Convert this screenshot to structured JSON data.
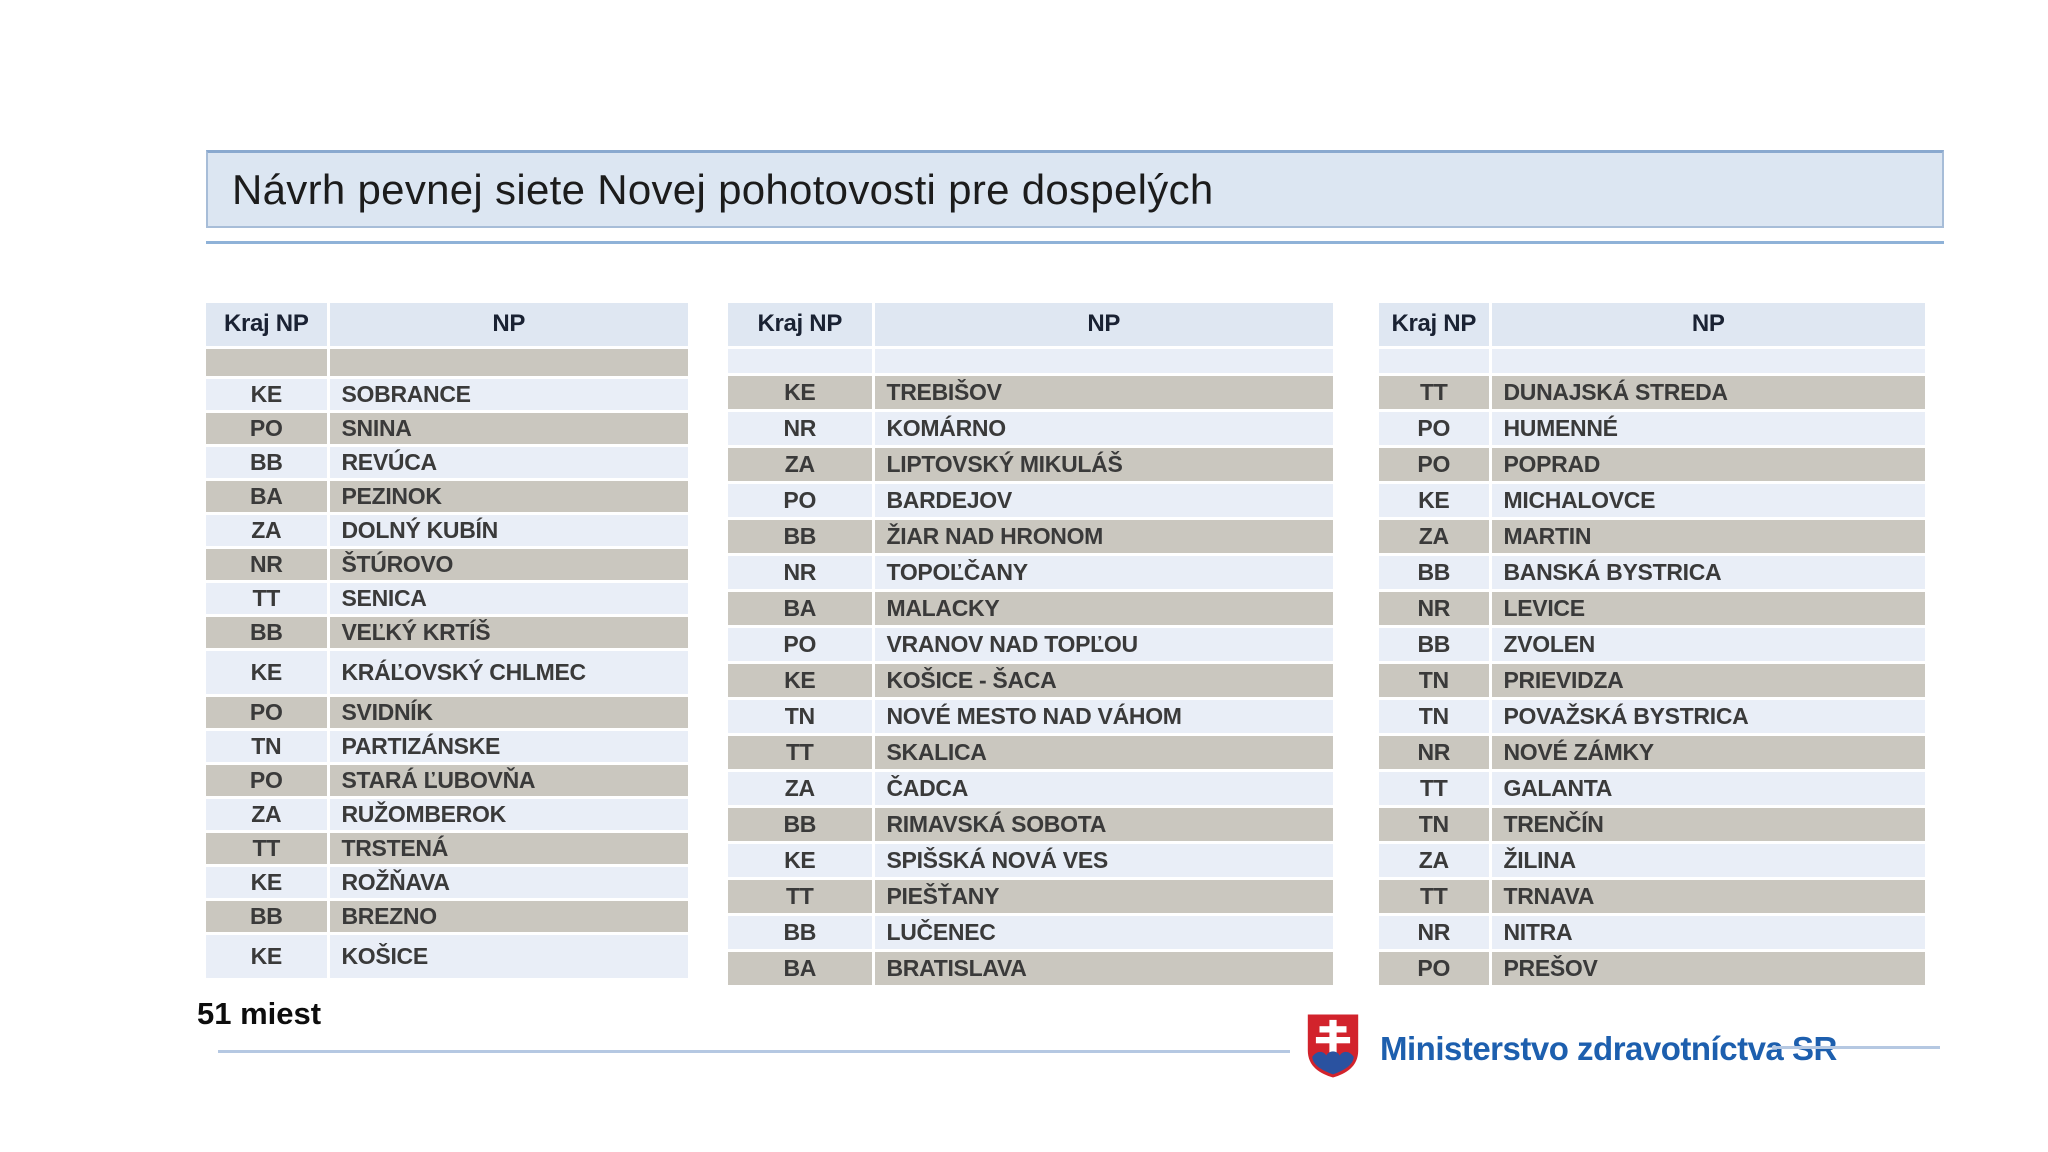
{
  "slide": {
    "title": "Návrh pevnej siete Novej pohotovosti pre dospelých",
    "count_label": "51 miest",
    "ministry_label": "Ministerstvo zdravotníctva SR"
  },
  "table_headers": {
    "kraj": "Kraj NP",
    "np": "NP"
  },
  "colors": {
    "title_bg": "#dce6f2",
    "title_border": "#a7bdd8",
    "accent_line": "#8fb2d8",
    "row_light": "#e9eef7",
    "row_gray": "#cac7bf",
    "header_bg": "#dfe7f2",
    "ministry_blue": "#1d5fae",
    "shield_red": "#d2232c",
    "shield_blue": "#2a52a0"
  },
  "tables": [
    {
      "position": "left",
      "empty_row_shade": "gray",
      "first_row_shade": "light",
      "rows": [
        {
          "kraj": "KE",
          "np": "SOBRANCE"
        },
        {
          "kraj": "PO",
          "np": "SNINA"
        },
        {
          "kraj": "BB",
          "np": "REVÚCA"
        },
        {
          "kraj": "BA",
          "np": "PEZINOK"
        },
        {
          "kraj": "ZA",
          "np": "DOLNÝ KUBÍN"
        },
        {
          "kraj": "NR",
          "np": "ŠTÚROVO"
        },
        {
          "kraj": "TT",
          "np": "SENICA"
        },
        {
          "kraj": "BB",
          "np": "VEĽKÝ KRTÍŠ"
        },
        {
          "kraj": "KE",
          "np": "KRÁĽOVSKÝ CHLMEC",
          "tall": true
        },
        {
          "kraj": "PO",
          "np": "SVIDNÍK"
        },
        {
          "kraj": "TN",
          "np": "PARTIZÁNSKE"
        },
        {
          "kraj": "PO",
          "np": "STARÁ ĽUBOVŇA"
        },
        {
          "kraj": "ZA",
          "np": "RUŽOMBEROK"
        },
        {
          "kraj": "TT",
          "np": "TRSTENÁ"
        },
        {
          "kraj": "KE",
          "np": "ROŽŇAVA"
        },
        {
          "kraj": "BB",
          "np": "BREZNO"
        },
        {
          "kraj": "KE",
          "np": "KOŠICE",
          "tall": true
        }
      ]
    },
    {
      "position": "center",
      "empty_row_shade": "light",
      "first_row_shade": "gray",
      "rows": [
        {
          "kraj": "KE",
          "np": "TREBIŠOV"
        },
        {
          "kraj": "NR",
          "np": "KOMÁRNO"
        },
        {
          "kraj": "ZA",
          "np": "LIPTOVSKÝ MIKULÁŠ"
        },
        {
          "kraj": "PO",
          "np": "BARDEJOV"
        },
        {
          "kraj": "BB",
          "np": "ŽIAR NAD HRONOM"
        },
        {
          "kraj": "NR",
          "np": "TOPOĽČANY"
        },
        {
          "kraj": "BA",
          "np": "MALACKY"
        },
        {
          "kraj": "PO",
          "np": "VRANOV NAD TOPĽOU"
        },
        {
          "kraj": "KE",
          "np": "KOŠICE - ŠACA"
        },
        {
          "kraj": "TN",
          "np": "NOVÉ MESTO NAD VÁHOM"
        },
        {
          "kraj": "TT",
          "np": "SKALICA"
        },
        {
          "kraj": "ZA",
          "np": "ČADCA"
        },
        {
          "kraj": "BB",
          "np": "RIMAVSKÁ SOBOTA"
        },
        {
          "kraj": "KE",
          "np": "SPIŠSKÁ NOVÁ VES"
        },
        {
          "kraj": "TT",
          "np": "PIEŠŤANY"
        },
        {
          "kraj": "BB",
          "np": "LUČENEC"
        },
        {
          "kraj": "BA",
          "np": "BRATISLAVA"
        }
      ]
    },
    {
      "position": "right",
      "empty_row_shade": "light",
      "first_row_shade": "gray",
      "rows": [
        {
          "kraj": "TT",
          "np": "DUNAJSKÁ STREDA"
        },
        {
          "kraj": "PO",
          "np": "HUMENNÉ"
        },
        {
          "kraj": "PO",
          "np": "POPRAD"
        },
        {
          "kraj": "KE",
          "np": "MICHALOVCE"
        },
        {
          "kraj": "ZA",
          "np": "MARTIN"
        },
        {
          "kraj": "BB",
          "np": "BANSKÁ BYSTRICA"
        },
        {
          "kraj": "NR",
          "np": "LEVICE"
        },
        {
          "kraj": "BB",
          "np": "ZVOLEN"
        },
        {
          "kraj": "TN",
          "np": "PRIEVIDZA"
        },
        {
          "kraj": "TN",
          "np": "POVAŽSKÁ BYSTRICA"
        },
        {
          "kraj": "NR",
          "np": "NOVÉ ZÁMKY"
        },
        {
          "kraj": "TT",
          "np": "GALANTA"
        },
        {
          "kraj": "TN",
          "np": "TRENČÍN"
        },
        {
          "kraj": "ZA",
          "np": "ŽILINA"
        },
        {
          "kraj": "TT",
          "np": "TRNAVA"
        },
        {
          "kraj": "NR",
          "np": "NITRA"
        },
        {
          "kraj": "PO",
          "np": "PREŠOV"
        }
      ]
    }
  ]
}
